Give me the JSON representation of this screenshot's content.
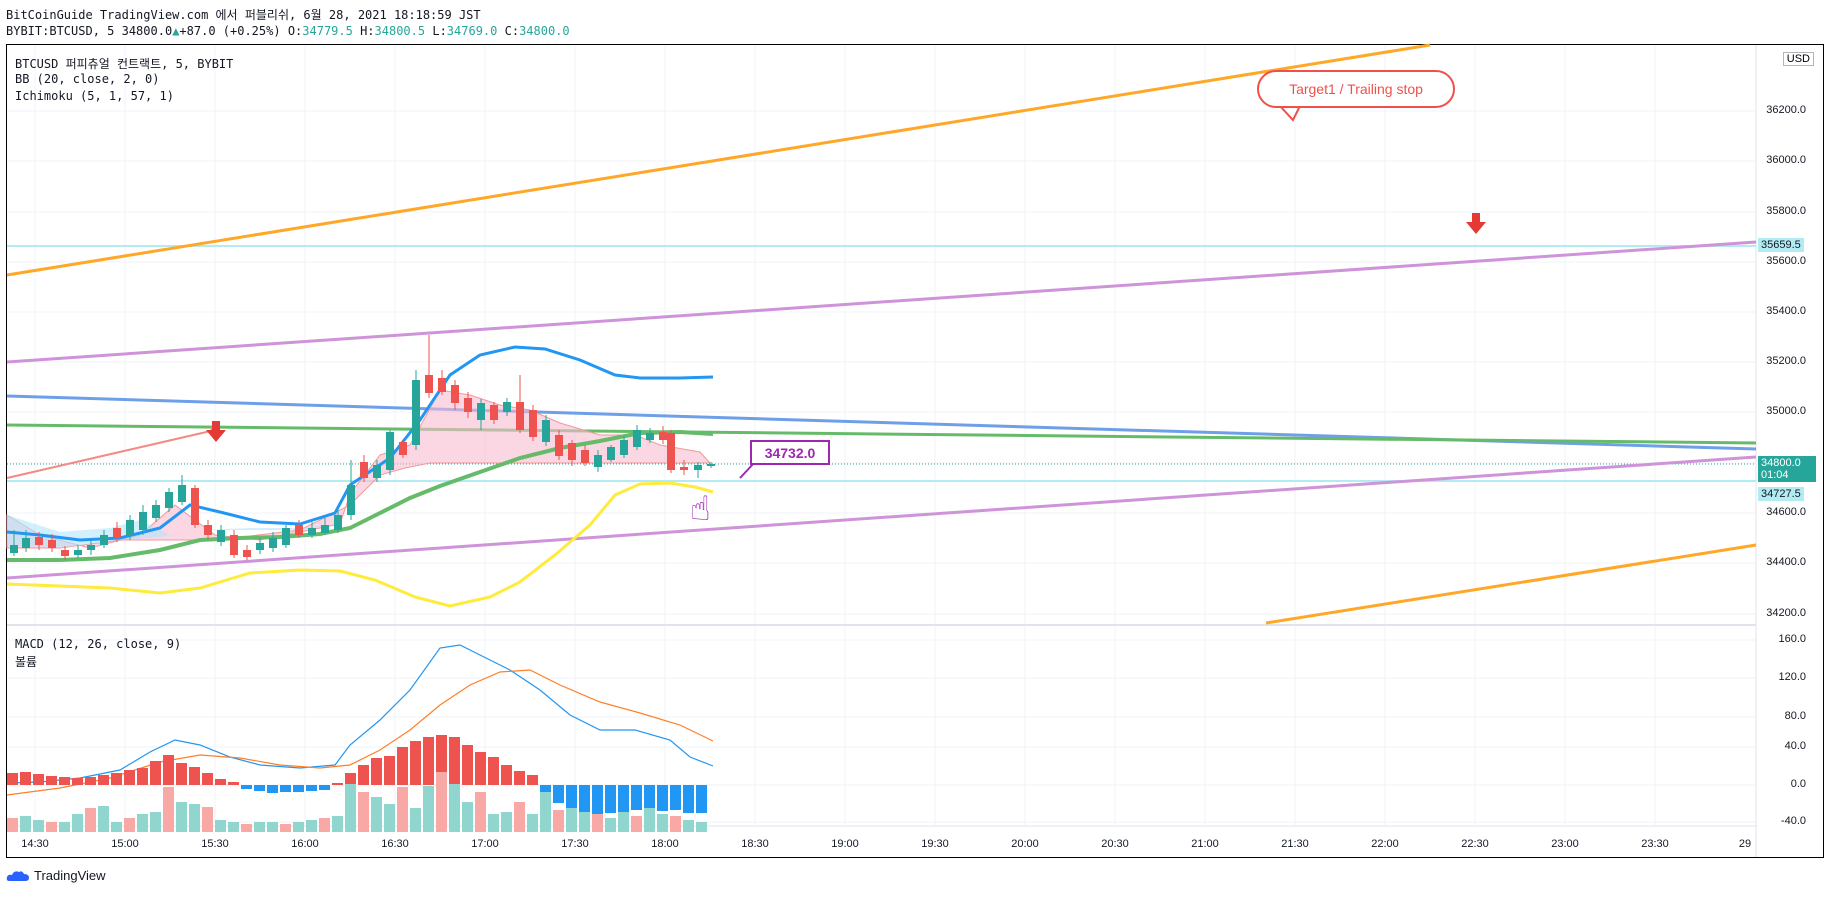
{
  "header": {
    "line1": "BitCoinGuide TradingView.com 에서 퍼블리쉬, 6월 28, 2021 18:18:59 JST",
    "symbol": "BYBIT:BTCUSD, 5",
    "last": "34800.0",
    "change": "+87.0 (+0.25%)",
    "o_label": "O:",
    "o_val": "34779.5",
    "h_label": "H:",
    "h_val": "34800.5",
    "l_label": "L:",
    "l_val": "34769.0",
    "c_label": "C:",
    "c_val": "34800.0"
  },
  "legend": {
    "title": "BTCUSD 퍼피츄얼 컨트랙트, 5, BYBIT",
    "bb": "BB (20, close, 2, 0)",
    "ichimoku": "Ichimoku (5, 1, 57, 1)",
    "macd": "MACD (12, 26, close, 9)",
    "volume": "볼륨"
  },
  "currency_button": "USD",
  "callout_text": "Target1 / Trailing stop",
  "price_note": "34732.0",
  "price_axis": [
    "36200.0",
    "36000.0",
    "35800.0",
    "35600.0",
    "35400.0",
    "35200.0",
    "35000.0",
    "34600.0",
    "34400.0",
    "34200.0"
  ],
  "price_tags": {
    "level_high": "35659.5",
    "current": "34800.0",
    "countdown": "01:04",
    "level_low": "34727.5"
  },
  "macd_axis": [
    "160.0",
    "120.0",
    "80.0",
    "40.0",
    "0.0",
    "-40.0"
  ],
  "time_axis": [
    "14:30",
    "15:00",
    "15:30",
    "16:00",
    "16:30",
    "17:00",
    "17:30",
    "18:00",
    "18:30",
    "19:00",
    "19:30",
    "20:00",
    "20:30",
    "21:00",
    "21:30",
    "22:00",
    "22:30",
    "23:00",
    "23:30",
    "29"
  ],
  "brand": "TradingView",
  "colors": {
    "up": "#26a69a",
    "down": "#ef5350",
    "bb_mid": "#2196f3",
    "orange_line": "#ffa726",
    "purple_line": "#ce93d8",
    "green_line": "#66bb6a",
    "blue_line": "#6f9fe8",
    "yellow_line": "#ffeb3b",
    "cyan_level": "#b2ebf2"
  }
}
